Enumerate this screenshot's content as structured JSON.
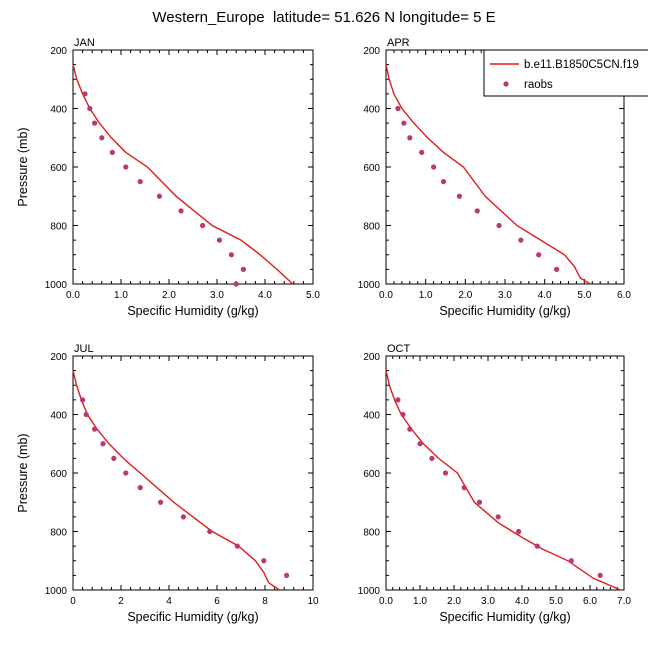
{
  "title": "Western_Europe  latitude= 51.626 N longitude= 5 E",
  "legend": {
    "model_label": "b.e11.B1850C5CN.f19",
    "obs_label": "raobs",
    "placement": "top-right"
  },
  "colors": {
    "model": "#e01c1c",
    "obs": "#b83a6e",
    "axis": "#000000"
  },
  "chart_data": [
    {
      "type": "line",
      "panel_label": "JAN",
      "xlabel": "Specific Humidity (g/kg)",
      "ylabel": "Pressure (mb)",
      "xlim": [
        0,
        5
      ],
      "ylim": [
        200,
        1000
      ],
      "y_inverted": true,
      "x_ticks": [
        "0.0",
        "1.0",
        "2.0",
        "3.0",
        "4.0",
        "5.0"
      ],
      "y_ticks": [
        "200",
        "400",
        "600",
        "800",
        "1000"
      ],
      "series": [
        {
          "name": "b.e11.B1850C5CN.f19",
          "style": "line",
          "x": [
            0.0,
            0.08,
            0.2,
            0.35,
            0.55,
            0.8,
            1.1,
            1.55,
            2.15,
            2.9,
            3.5,
            3.9,
            4.25,
            4.58
          ],
          "y": [
            250,
            300,
            350,
            400,
            450,
            500,
            550,
            600,
            700,
            800,
            850,
            900,
            950,
            1000
          ]
        },
        {
          "name": "raobs",
          "style": "markers",
          "x": [
            0.25,
            0.35,
            0.45,
            0.6,
            0.82,
            1.1,
            1.4,
            1.8,
            2.25,
            2.7,
            3.05,
            3.3,
            3.55,
            3.4
          ],
          "y": [
            350,
            400,
            450,
            500,
            550,
            600,
            650,
            700,
            750,
            800,
            850,
            900,
            950,
            1000
          ]
        }
      ]
    },
    {
      "type": "line",
      "panel_label": "APR",
      "xlabel": "Specific Humidity (g/kg)",
      "ylabel": "",
      "xlim": [
        0,
        6
      ],
      "ylim": [
        200,
        1000
      ],
      "y_inverted": true,
      "x_ticks": [
        "0.0",
        "1.0",
        "2.0",
        "3.0",
        "4.0",
        "5.0",
        "6.0"
      ],
      "y_ticks": [
        "200",
        "400",
        "600",
        "800",
        "1000"
      ],
      "series": [
        {
          "name": "b.e11.B1850C5CN.f19",
          "style": "line",
          "x": [
            0.0,
            0.08,
            0.2,
            0.4,
            0.7,
            1.05,
            1.45,
            1.95,
            2.5,
            3.3,
            3.9,
            4.5,
            4.75,
            4.9,
            5.15
          ],
          "y": [
            250,
            300,
            350,
            400,
            450,
            500,
            550,
            600,
            700,
            800,
            850,
            900,
            940,
            980,
            1000
          ]
        },
        {
          "name": "raobs",
          "style": "markers",
          "x": [
            0.3,
            0.45,
            0.6,
            0.9,
            1.2,
            1.45,
            1.85,
            2.3,
            2.85,
            3.4,
            3.85,
            4.3
          ],
          "y": [
            400,
            450,
            500,
            550,
            600,
            650,
            700,
            750,
            800,
            850,
            900,
            950
          ]
        }
      ]
    },
    {
      "type": "line",
      "panel_label": "JUL",
      "xlabel": "Specific Humidity (g/kg)",
      "ylabel": "Pressure (mb)",
      "xlim": [
        0,
        10
      ],
      "ylim": [
        200,
        1000
      ],
      "y_inverted": true,
      "x_ticks": [
        "0",
        "2",
        "4",
        "6",
        "8",
        "10"
      ],
      "y_ticks": [
        "200",
        "400",
        "600",
        "800",
        "1000"
      ],
      "series": [
        {
          "name": "b.e11.B1850C5CN.f19",
          "style": "line",
          "x": [
            0.0,
            0.15,
            0.35,
            0.6,
            1.0,
            1.5,
            2.1,
            2.8,
            4.2,
            5.8,
            6.9,
            7.6,
            7.95,
            8.15,
            8.6
          ],
          "y": [
            250,
            300,
            350,
            400,
            450,
            500,
            550,
            600,
            700,
            800,
            850,
            900,
            940,
            975,
            1000
          ]
        },
        {
          "name": "raobs",
          "style": "markers",
          "x": [
            0.4,
            0.55,
            0.9,
            1.25,
            1.7,
            2.2,
            2.8,
            3.65,
            4.6,
            5.7,
            6.85,
            7.95,
            8.9
          ],
          "y": [
            350,
            400,
            450,
            500,
            550,
            600,
            650,
            700,
            750,
            800,
            850,
            900,
            950
          ]
        }
      ]
    },
    {
      "type": "line",
      "panel_label": "OCT",
      "xlabel": "Specific Humidity (g/kg)",
      "ylabel": "",
      "xlim": [
        0,
        7
      ],
      "ylim": [
        200,
        1000
      ],
      "y_inverted": true,
      "x_ticks": [
        "0.0",
        "1.0",
        "2.0",
        "3.0",
        "4.0",
        "5.0",
        "6.0",
        "7.0"
      ],
      "y_ticks": [
        "200",
        "400",
        "600",
        "800",
        "1000"
      ],
      "series": [
        {
          "name": "b.e11.B1850C5CN.f19",
          "style": "line",
          "x": [
            0.0,
            0.1,
            0.25,
            0.45,
            0.75,
            1.1,
            1.55,
            2.1,
            2.6,
            3.3,
            4.0,
            4.6,
            5.35,
            6.1,
            6.9
          ],
          "y": [
            250,
            300,
            350,
            400,
            450,
            500,
            550,
            600,
            700,
            770,
            820,
            860,
            900,
            960,
            1000
          ]
        },
        {
          "name": "raobs",
          "style": "markers",
          "x": [
            0.35,
            0.5,
            0.7,
            1.0,
            1.35,
            1.75,
            2.3,
            2.75,
            3.3,
            3.9,
            4.45,
            5.45,
            6.3
          ],
          "y": [
            350,
            400,
            450,
            500,
            550,
            600,
            650,
            700,
            750,
            800,
            850,
            900,
            950
          ]
        }
      ]
    }
  ]
}
